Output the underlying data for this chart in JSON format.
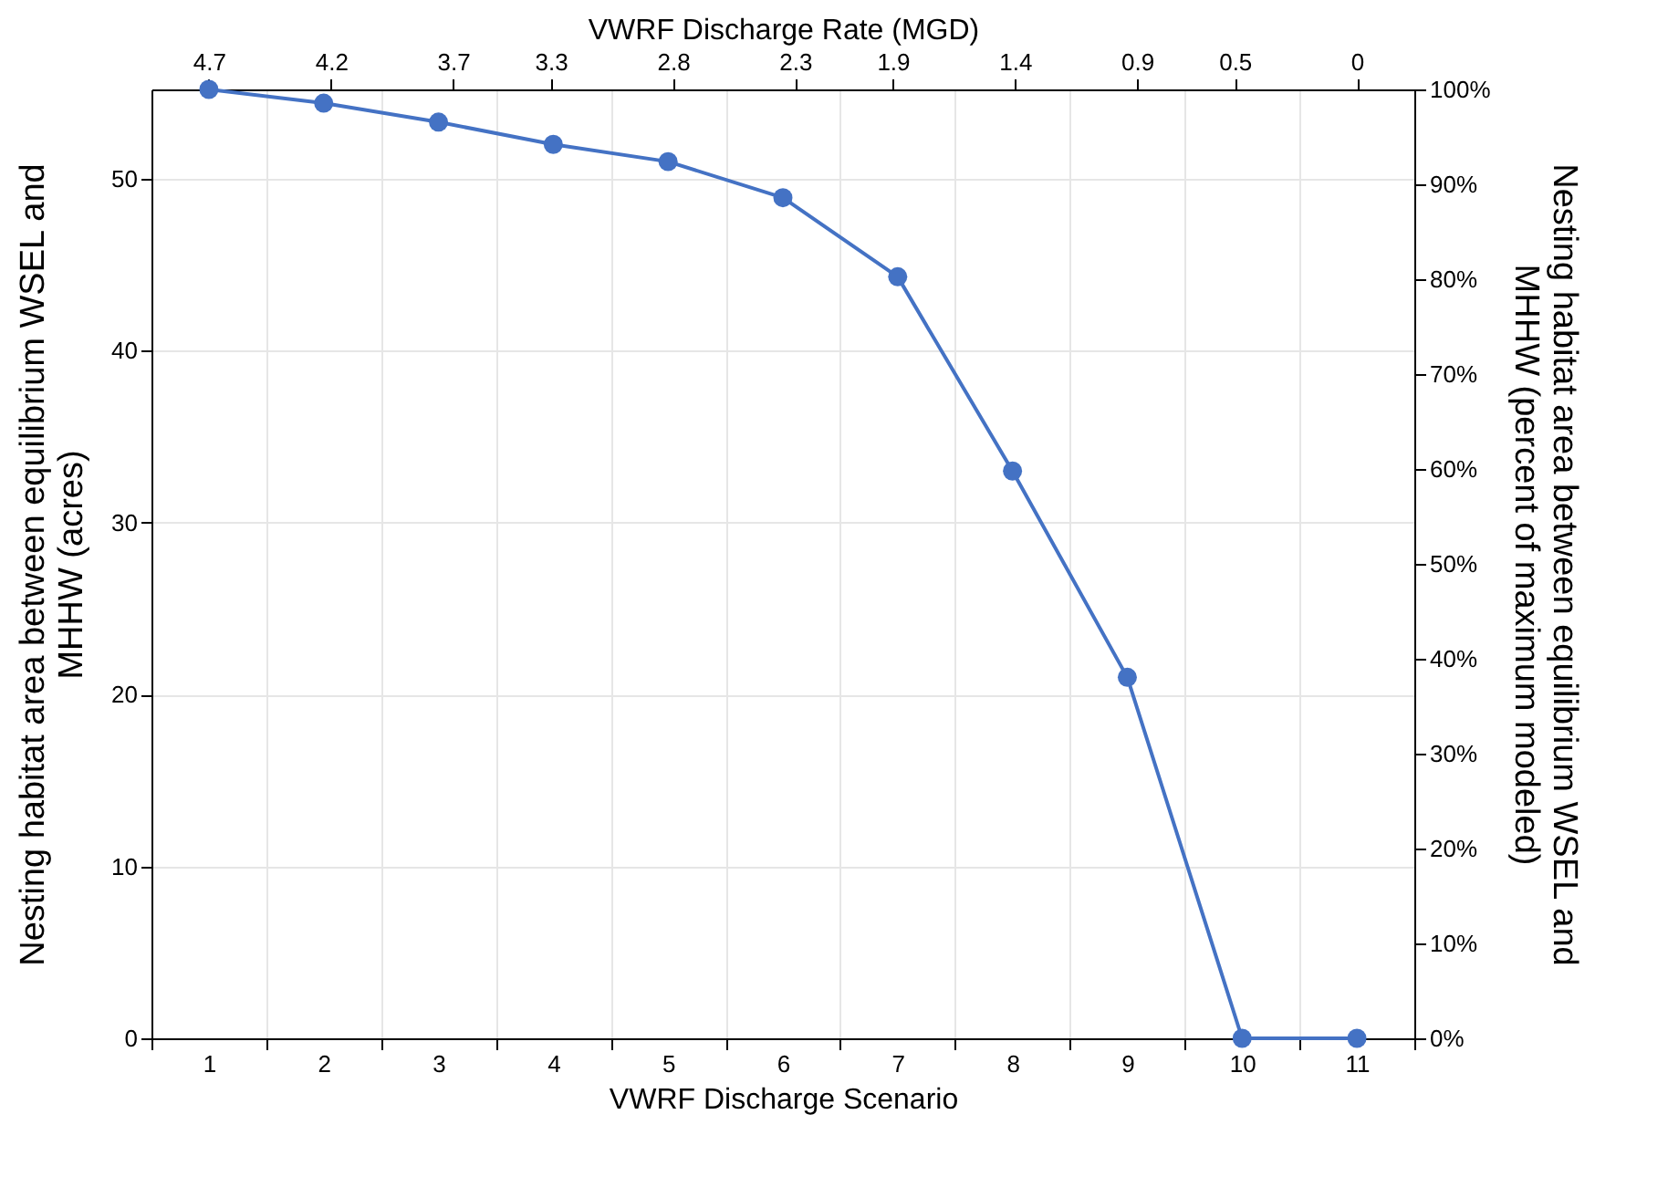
{
  "chart_data": {
    "type": "line",
    "xlabel": "VWRF Discharge Scenario",
    "x2label": "VWRF Discharge Rate (MGD)",
    "ylabel": "Nesting habitat area between equilibrium WSEL and MHHW (acres)",
    "y2label": "Nesting habitat area between equilibrium WSEL and MHHW (percent of maximum modeled)",
    "categories": [
      "1",
      "2",
      "3",
      "4",
      "5",
      "6",
      "7",
      "8",
      "9",
      "10",
      "11"
    ],
    "x2lim": [
      4.935,
      -0.235
    ],
    "x2ticks": [
      4.7,
      4.2,
      3.7,
      3.3,
      2.8,
      2.3,
      1.9,
      1.4,
      0.9,
      0.5,
      0
    ],
    "series": [
      {
        "color": "#4472c4",
        "values": [
          55.2,
          54.4,
          53.3,
          52.0,
          51.0,
          48.9,
          44.3,
          33.0,
          21.0,
          0,
          0
        ]
      }
    ],
    "ylim": [
      0,
      55.2
    ],
    "yticks": [
      0,
      10,
      20,
      30,
      40,
      50
    ],
    "y2lim": [
      0,
      100
    ],
    "y2ticks": [
      {
        "value": 0,
        "label": "0%"
      },
      {
        "value": 10,
        "label": "10%"
      },
      {
        "value": 20,
        "label": "20%"
      },
      {
        "value": 30,
        "label": "30%"
      },
      {
        "value": 40,
        "label": "40%"
      },
      {
        "value": 50,
        "label": "50%"
      },
      {
        "value": 60,
        "label": "60%"
      },
      {
        "value": 70,
        "label": "70%"
      },
      {
        "value": 80,
        "label": "80%"
      },
      {
        "value": 90,
        "label": "90%"
      },
      {
        "value": 100,
        "label": "100%"
      }
    ],
    "grid": true,
    "marker": "circle",
    "line_style": "solid"
  }
}
